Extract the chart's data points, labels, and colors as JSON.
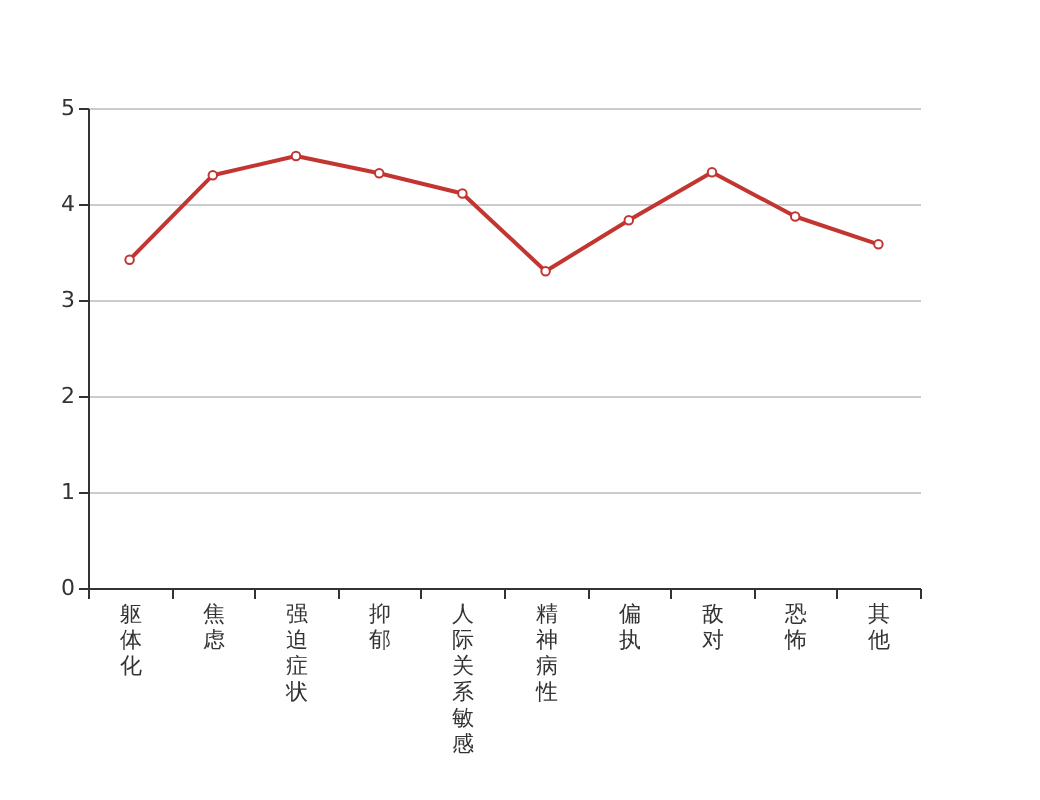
{
  "chart_data": {
    "type": "line",
    "categories": [
      "躯体化",
      "焦虑",
      "强迫症状",
      "抑郁",
      "人际关系敏感",
      "精神病性",
      "偏执",
      "敌对",
      "恐怖",
      "其他"
    ],
    "series": [
      {
        "color": "#c23531",
        "values": [
          3.42,
          4.3,
          4.5,
          4.32,
          4.11,
          3.3,
          3.83,
          4.33,
          3.87,
          3.58
        ]
      }
    ],
    "ylim": [
      0,
      5
    ],
    "yticks": [
      0,
      1,
      2,
      3,
      4,
      5
    ],
    "grid": "y",
    "marker": "circle",
    "line_style": "solid"
  }
}
